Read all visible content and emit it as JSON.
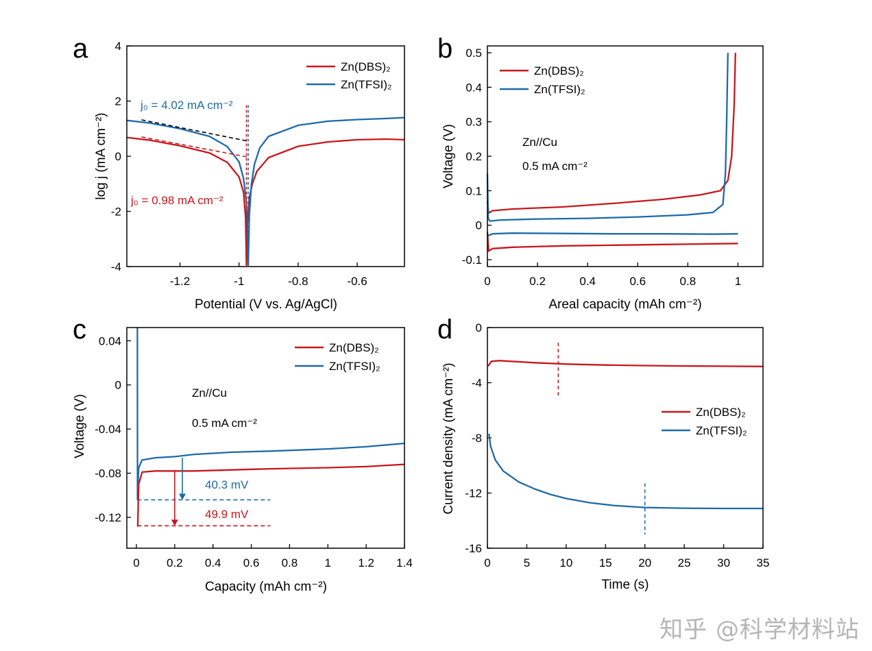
{
  "colors": {
    "red": "#c8161d",
    "blue": "#1c6aa8",
    "black": "#000000"
  },
  "watermark": "知乎 @科学材料站",
  "chart_data": [
    {
      "panel": "a",
      "type": "line",
      "xlabel": "Potential  (V vs. Ag/AgCl)",
      "ylabel": "log j (mA cm⁻²)",
      "xlim": [
        -1.38,
        -0.44
      ],
      "ylim": [
        -4,
        4
      ],
      "xticks": [
        -1.2,
        -1.0,
        -0.8,
        -0.6
      ],
      "xtick_labels": [
        "-1.2",
        "-1",
        "-0.8",
        "-0.6"
      ],
      "yticks": [
        -4,
        -2,
        0,
        2,
        4
      ],
      "ytick_labels": [
        "-4",
        "-2",
        "0",
        "2",
        "4"
      ],
      "legend": [
        "Zn(DBS)₂",
        "Zn(TFSI)₂"
      ],
      "annotations": [
        {
          "text": "j₀ = 4.02 mA cm⁻²",
          "color": "blue"
        },
        {
          "text": "j₀ = 0.98 mA cm⁻²",
          "color": "red"
        }
      ],
      "series": [
        {
          "name": "Zn(DBS)₂",
          "color": "red",
          "x": [
            -1.38,
            -1.3,
            -1.2,
            -1.1,
            -1.04,
            -1.0,
            -0.985,
            -0.978,
            -0.975,
            -0.972,
            -0.965,
            -0.955,
            -0.94,
            -0.9,
            -0.8,
            -0.7,
            -0.6,
            -0.5,
            -0.44
          ],
          "y": [
            0.68,
            0.58,
            0.38,
            0.12,
            -0.22,
            -0.75,
            -1.3,
            -2.2,
            -3.95,
            -2.5,
            -1.5,
            -1.0,
            -0.55,
            -0.05,
            0.36,
            0.52,
            0.6,
            0.62,
            0.6
          ]
        },
        {
          "name": "Zn(TFSI)₂",
          "color": "blue",
          "x": [
            -1.38,
            -1.3,
            -1.2,
            -1.1,
            -1.04,
            -1.0,
            -0.985,
            -0.975,
            -0.969,
            -0.965,
            -0.958,
            -0.948,
            -0.93,
            -0.9,
            -0.8,
            -0.7,
            -0.6,
            -0.5,
            -0.44
          ],
          "y": [
            1.3,
            1.2,
            1.0,
            0.72,
            0.35,
            -0.2,
            -0.8,
            -1.7,
            -3.95,
            -2.1,
            -1.0,
            -0.3,
            0.3,
            0.72,
            1.12,
            1.27,
            1.33,
            1.37,
            1.4
          ]
        },
        {
          "name": "Tafel fit (TFSI)",
          "color": "black",
          "dashed": true,
          "x": [
            -1.33,
            -0.97
          ],
          "y": [
            1.32,
            0.55
          ]
        },
        {
          "name": "Tafel fit (DBS)",
          "color": "red",
          "dashed": true,
          "x": [
            -1.33,
            -0.97
          ],
          "y": [
            0.7,
            -0.03
          ]
        }
      ]
    },
    {
      "panel": "b",
      "type": "line",
      "xlabel": "Areal capacity (mAh cm⁻²)",
      "ylabel": "Voltage (V)",
      "xlim": [
        0,
        1.1
      ],
      "ylim": [
        -0.12,
        0.52
      ],
      "xticks": [
        0,
        0.2,
        0.4,
        0.6,
        0.8,
        1.0
      ],
      "xtick_labels": [
        "0",
        "0.2",
        "0.4",
        "0.6",
        "0.8",
        "1"
      ],
      "yticks": [
        -0.1,
        0,
        0.1,
        0.2,
        0.3,
        0.4,
        0.5
      ],
      "ytick_labels": [
        "-0.1",
        "0",
        "0.1",
        "0.2",
        "0.3",
        "0.4",
        "0.5"
      ],
      "legend": [
        "Zn(DBS)₂",
        "Zn(TFSI)₂"
      ],
      "annotations": [
        {
          "text": "Zn//Cu"
        },
        {
          "text": "0.5 mA cm⁻²"
        }
      ],
      "series": [
        {
          "name": "Zn(DBS)₂ plating",
          "color": "red",
          "x": [
            0,
            0.005,
            0.02,
            0.1,
            0.3,
            0.5,
            0.7,
            0.9,
            1.0
          ],
          "y": [
            -0.02,
            -0.075,
            -0.068,
            -0.064,
            -0.06,
            -0.058,
            -0.056,
            -0.054,
            -0.053
          ]
        },
        {
          "name": "Zn(DBS)₂ stripping",
          "color": "red",
          "x": [
            0,
            0.005,
            0.02,
            0.1,
            0.3,
            0.5,
            0.7,
            0.85,
            0.93,
            0.96,
            0.975,
            0.985,
            0.99
          ],
          "y": [
            0.07,
            0.035,
            0.042,
            0.047,
            0.053,
            0.063,
            0.075,
            0.088,
            0.1,
            0.13,
            0.2,
            0.35,
            0.5
          ]
        },
        {
          "name": "Zn(TFSI)₂ plating",
          "color": "blue",
          "x": [
            0,
            0.005,
            0.02,
            0.1,
            0.3,
            0.5,
            0.7,
            0.9,
            1.0
          ],
          "y": [
            -0.03,
            -0.03,
            -0.025,
            -0.023,
            -0.024,
            -0.025,
            -0.025,
            -0.026,
            -0.025
          ]
        },
        {
          "name": "Zn(TFSI)₂ stripping",
          "color": "blue",
          "x": [
            0,
            0.003,
            0.01,
            0.05,
            0.2,
            0.4,
            0.6,
            0.8,
            0.9,
            0.94,
            0.95,
            0.955,
            0.96
          ],
          "y": [
            0.15,
            0.02,
            0.012,
            0.015,
            0.018,
            0.02,
            0.024,
            0.03,
            0.037,
            0.06,
            0.15,
            0.3,
            0.5
          ]
        }
      ]
    },
    {
      "panel": "c",
      "type": "line",
      "xlabel": "Capacity (mAh cm⁻²)",
      "ylabel": "Voltage (V)",
      "xlim": [
        -0.05,
        1.4
      ],
      "ylim": [
        -0.148,
        0.052
      ],
      "xticks": [
        0,
        0.2,
        0.4,
        0.6,
        0.8,
        1.0,
        1.2,
        1.4
      ],
      "xtick_labels": [
        "0",
        "0.2",
        "0.4",
        "0.6",
        "0.8",
        "1",
        "1.2",
        "1.4"
      ],
      "yticks": [
        -0.12,
        -0.08,
        -0.04,
        0,
        0.04
      ],
      "ytick_labels": [
        "-0.12",
        "-0.08",
        "-0.04",
        "0",
        "0.04"
      ],
      "legend": [
        "Zn(DBS)₂",
        "Zn(TFSI)₂"
      ],
      "annotations": [
        {
          "text": "Zn//Cu"
        },
        {
          "text": "0.5 mA cm⁻²"
        },
        {
          "text": "40.3 mV",
          "color": "blue"
        },
        {
          "text": "49.9 mV",
          "color": "red"
        }
      ],
      "nucleation_minimum": {
        "Zn(DBS)₂": -0.1277,
        "Zn(TFSI)₂": -0.1042
      },
      "series": [
        {
          "name": "Zn(TFSI)₂",
          "color": "blue",
          "x": [
            0.005,
            0.006,
            0.008,
            0.012,
            0.03,
            0.1,
            0.2,
            0.3,
            0.5,
            0.7,
            1.0,
            1.2,
            1.4
          ],
          "y": [
            0.052,
            -0.104,
            -0.09,
            -0.075,
            -0.068,
            -0.066,
            -0.065,
            -0.063,
            -0.061,
            -0.06,
            -0.058,
            -0.056,
            -0.053
          ]
        },
        {
          "name": "Zn(DBS)₂",
          "color": "red",
          "x": [
            0.005,
            0.007,
            0.012,
            0.03,
            0.1,
            0.3,
            0.5,
            0.7,
            1.0,
            1.2,
            1.4
          ],
          "y": [
            -0.128,
            -0.128,
            -0.09,
            -0.079,
            -0.078,
            -0.078,
            -0.077,
            -0.076,
            -0.075,
            -0.074,
            -0.072
          ]
        }
      ]
    },
    {
      "panel": "d",
      "type": "line",
      "xlabel": "Time (s)",
      "ylabel": "Current density (mA cm⁻²)",
      "xlim": [
        0,
        35
      ],
      "ylim": [
        -16,
        0
      ],
      "xticks": [
        0,
        5,
        10,
        15,
        20,
        25,
        30,
        35
      ],
      "xtick_labels": [
        "0",
        "5",
        "10",
        "15",
        "20",
        "25",
        "30",
        "35"
      ],
      "yticks": [
        -16,
        -12,
        -8,
        -4,
        0
      ],
      "ytick_labels": [
        "-16",
        "-12",
        "-8",
        "-4",
        "0"
      ],
      "legend": [
        "Zn(DBS)₂",
        "Zn(TFSI)₂"
      ],
      "markers": [
        {
          "x": 9,
          "y1": -1.1,
          "y2": -5.0,
          "color": "red"
        },
        {
          "x": 20,
          "y1": -11.3,
          "y2": -15.0,
          "color": "blue"
        }
      ],
      "series": [
        {
          "name": "Zn(DBS)₂",
          "color": "red",
          "x": [
            0.1,
            0.5,
            1.5,
            3,
            6,
            10,
            15,
            20,
            25,
            30,
            35
          ],
          "y": [
            -2.8,
            -2.45,
            -2.4,
            -2.45,
            -2.55,
            -2.65,
            -2.72,
            -2.76,
            -2.79,
            -2.8,
            -2.82
          ]
        },
        {
          "name": "Zn(TFSI)₂",
          "color": "blue",
          "x": [
            0.2,
            0.4,
            1,
            2,
            4,
            6,
            8,
            10,
            13,
            16,
            20,
            25,
            30,
            35
          ],
          "y": [
            -7.7,
            -8.6,
            -9.6,
            -10.4,
            -11.2,
            -11.7,
            -12.1,
            -12.4,
            -12.7,
            -12.9,
            -13.05,
            -13.1,
            -13.12,
            -13.12
          ]
        }
      ]
    }
  ]
}
